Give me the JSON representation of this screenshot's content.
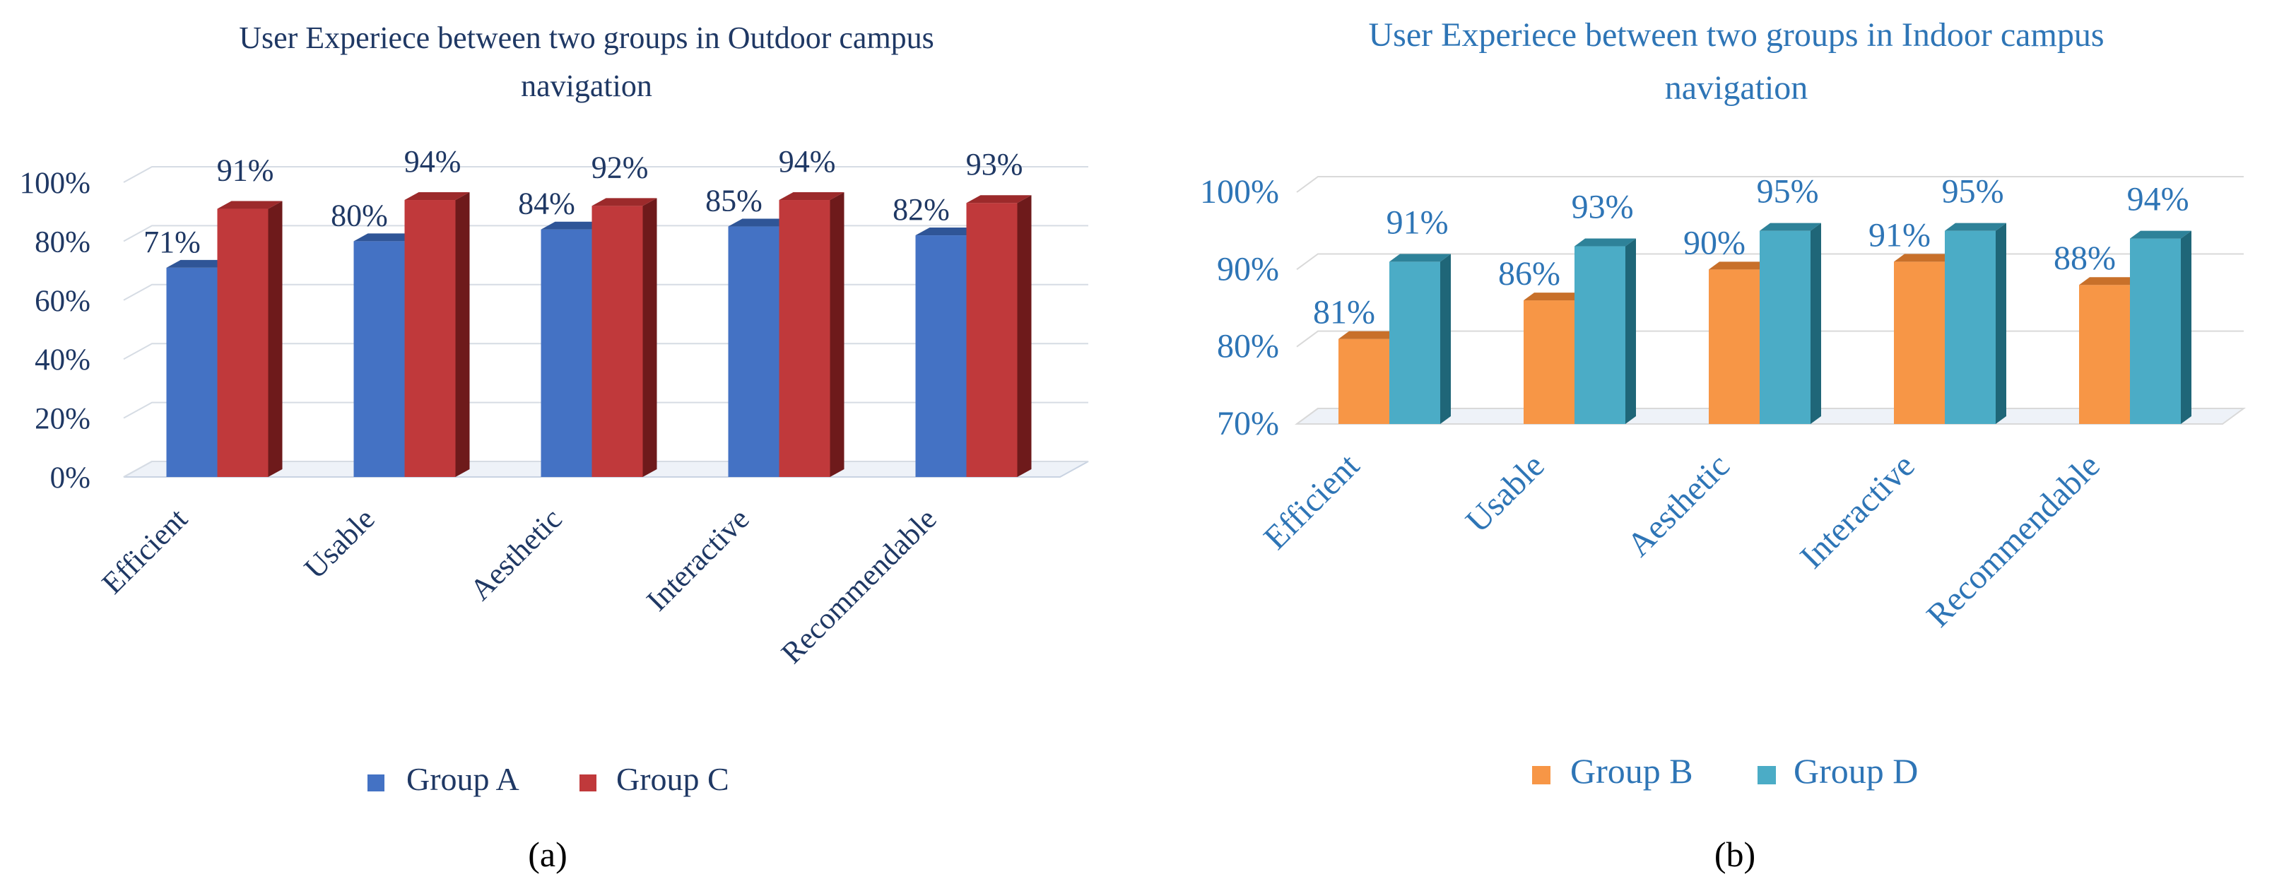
{
  "charts": [
    {
      "id": "a",
      "caption": "(a)",
      "colors": {
        "text": "#1F3864",
        "grid": "#D6DCE4",
        "axis": "#C9D3E2"
      },
      "chart_data": {
        "type": "bar",
        "title_lines": [
          "User Experiece between two groups in Outdoor campus",
          "navigation"
        ],
        "categories": [
          "Efficient",
          "Usable",
          "Aesthetic",
          "Interactive",
          "Recommendable"
        ],
        "series": [
          {
            "name": "Group A",
            "values": [
              71,
              80,
              84,
              85,
              82
            ],
            "labels": [
              "71%",
              "80%",
              "84%",
              "85%",
              "82%"
            ],
            "colors": {
              "front": "#4472C4",
              "top": "#2F5597",
              "side": "#1F3D73"
            }
          },
          {
            "name": "Group C",
            "values": [
              91,
              94,
              92,
              94,
              93
            ],
            "labels": [
              "91%",
              "94%",
              "92%",
              "94%",
              "93%"
            ],
            "colors": {
              "front": "#C0393B",
              "top": "#9C2A2B",
              "side": "#6E1A1B"
            }
          }
        ],
        "ylim": [
          0,
          100
        ],
        "yticks": [
          0,
          20,
          40,
          60,
          80,
          100
        ],
        "ytick_labels": [
          "0%",
          "20%",
          "40%",
          "60%",
          "80%",
          "100%"
        ],
        "legend": "bottom"
      }
    },
    {
      "id": "b",
      "caption": "(b)",
      "colors": {
        "text": "#2E75B6",
        "grid": "#D9D9D9",
        "axis": "#D9D9D9"
      },
      "chart_data": {
        "type": "bar",
        "title_lines": [
          "User Experiece between two groups in Indoor campus",
          "navigation"
        ],
        "categories": [
          "Efficient",
          "Usable",
          "Aesthetic",
          "Interactive",
          "Recommendable"
        ],
        "series": [
          {
            "name": "Group B",
            "values": [
              81,
              86,
              90,
              91,
              88
            ],
            "labels": [
              "81%",
              "86%",
              "90%",
              "91%",
              "88%"
            ],
            "colors": {
              "front": "#F79646",
              "top": "#C8702A",
              "side": "#A85D22"
            }
          },
          {
            "name": "Group D",
            "values": [
              91,
              93,
              95,
              95,
              94
            ],
            "labels": [
              "91%",
              "93%",
              "95%",
              "95%",
              "94%"
            ],
            "colors": {
              "front": "#4BACC6",
              "top": "#2E8299",
              "side": "#1F6678"
            }
          }
        ],
        "ylim": [
          70,
          100
        ],
        "yticks": [
          70,
          80,
          90,
          100
        ],
        "ytick_labels": [
          "70%",
          "80%",
          "90%",
          "100%"
        ],
        "legend": "bottom"
      }
    }
  ]
}
